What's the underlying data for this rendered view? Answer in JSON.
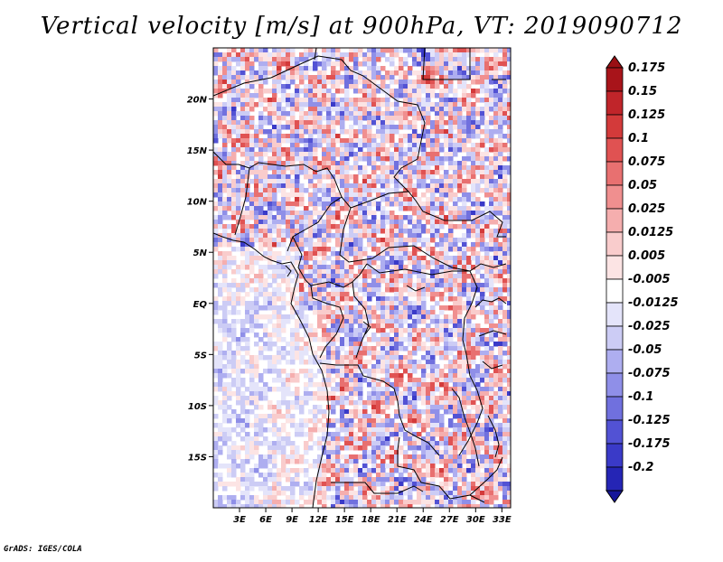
{
  "title": "Vertical velocity [m/s] at 900hPa, VT: 2019090712",
  "credit": "GrADS: IGES/COLA",
  "map": {
    "lon_range": [
      0,
      34
    ],
    "lat_range": [
      -20,
      25
    ],
    "lat_ticks": [
      {
        "value": 20,
        "label": "20N"
      },
      {
        "value": 15,
        "label": "15N"
      },
      {
        "value": 10,
        "label": "10N"
      },
      {
        "value": 5,
        "label": "5N"
      },
      {
        "value": 0,
        "label": "EQ"
      },
      {
        "value": -5,
        "label": "5S"
      },
      {
        "value": -10,
        "label": "10S"
      },
      {
        "value": -15,
        "label": "15S"
      }
    ],
    "lon_ticks": [
      {
        "value": 3,
        "label": "3E"
      },
      {
        "value": 6,
        "label": "6E"
      },
      {
        "value": 9,
        "label": "9E"
      },
      {
        "value": 12,
        "label": "12E"
      },
      {
        "value": 15,
        "label": "15E"
      },
      {
        "value": 18,
        "label": "18E"
      },
      {
        "value": 21,
        "label": "21E"
      },
      {
        "value": 24,
        "label": "24E"
      },
      {
        "value": 27,
        "label": "27E"
      },
      {
        "value": 30,
        "label": "30E"
      },
      {
        "value": 33,
        "label": "33E"
      }
    ]
  },
  "legend": {
    "levels": [
      {
        "label": "0.175",
        "color": "#a8141a"
      },
      {
        "label": "0.15",
        "color": "#c0252a"
      },
      {
        "label": "0.125",
        "color": "#d33a3a"
      },
      {
        "label": "0.1",
        "color": "#e05252"
      },
      {
        "label": "0.075",
        "color": "#e87070"
      },
      {
        "label": "0.05",
        "color": "#f08f8f"
      },
      {
        "label": "0.025",
        "color": "#f5aeae"
      },
      {
        "label": "0.0125",
        "color": "#f9cccc"
      },
      {
        "label": "0.005",
        "color": "#fce4e4"
      },
      {
        "label": "-0.005",
        "color": "#ffffff"
      },
      {
        "label": "-0.0125",
        "color": "#e4e4fa"
      },
      {
        "label": "-0.025",
        "color": "#ccccf5"
      },
      {
        "label": "-0.05",
        "color": "#aeaef0"
      },
      {
        "label": "-0.075",
        "color": "#8f8fe8"
      },
      {
        "label": "-0.1",
        "color": "#7070de"
      },
      {
        "label": "-0.125",
        "color": "#5252d4"
      },
      {
        "label": "-0.175",
        "color": "#3a3ac8"
      },
      {
        "label": "-0.2",
        "color": "#2525b5"
      }
    ],
    "max_color": "#9a0f14",
    "min_color": "#16169a"
  }
}
